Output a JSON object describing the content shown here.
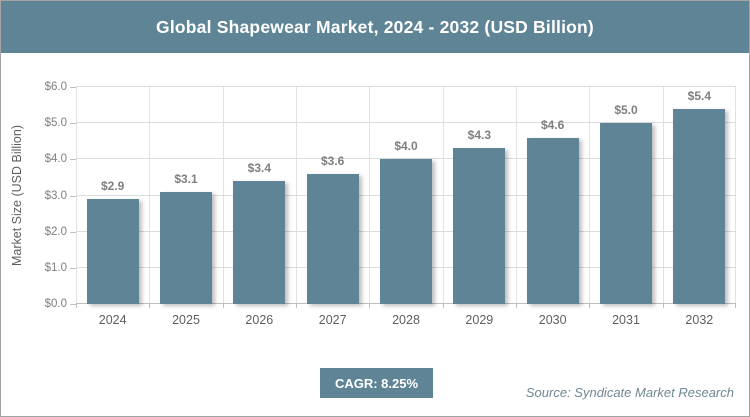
{
  "header": {
    "title": "Global Shapewear Market, 2024 - 2032 (USD Billion)"
  },
  "chart_data": {
    "type": "bar",
    "title": "Global Shapewear Market, 2024 - 2032 (USD Billion)",
    "categories": [
      "2024",
      "2025",
      "2026",
      "2027",
      "2028",
      "2029",
      "2030",
      "2031",
      "2032"
    ],
    "values": [
      2.9,
      3.1,
      3.4,
      3.6,
      4.0,
      4.3,
      4.6,
      5.0,
      5.4
    ],
    "data_labels": [
      "$2.9",
      "$3.1",
      "$3.4",
      "$3.6",
      "$4.0",
      "$4.3",
      "$4.6",
      "$5.0",
      "$5.4"
    ],
    "xlabel": "",
    "ylabel": "Market Size (USD Billion)",
    "ylim": [
      0,
      6
    ],
    "ytick_step": 1.0,
    "y_tick_labels": [
      "$0.0",
      "$1.0",
      "$2.0",
      "$3.0",
      "$4.0",
      "$5.0",
      "$6.0"
    ],
    "grid": "horizontal-and-vertical",
    "legend_position": "none",
    "bar_color": "#5E8496"
  },
  "footer": {
    "cagr_label": "CAGR: 8.25%",
    "source": "Source: Syndicate Market Research"
  },
  "colors": {
    "accent": "#5E8496",
    "grid_h": "#DCDCDC",
    "grid_v": "#E2E2E2",
    "axis": "#BFBFBF",
    "tick_label": "#7F7F7F",
    "category_label": "#5F5F5F",
    "source_text": "#6F8896",
    "frame_border": "#A3A3A3",
    "title_text": "#FFFFFF"
  }
}
